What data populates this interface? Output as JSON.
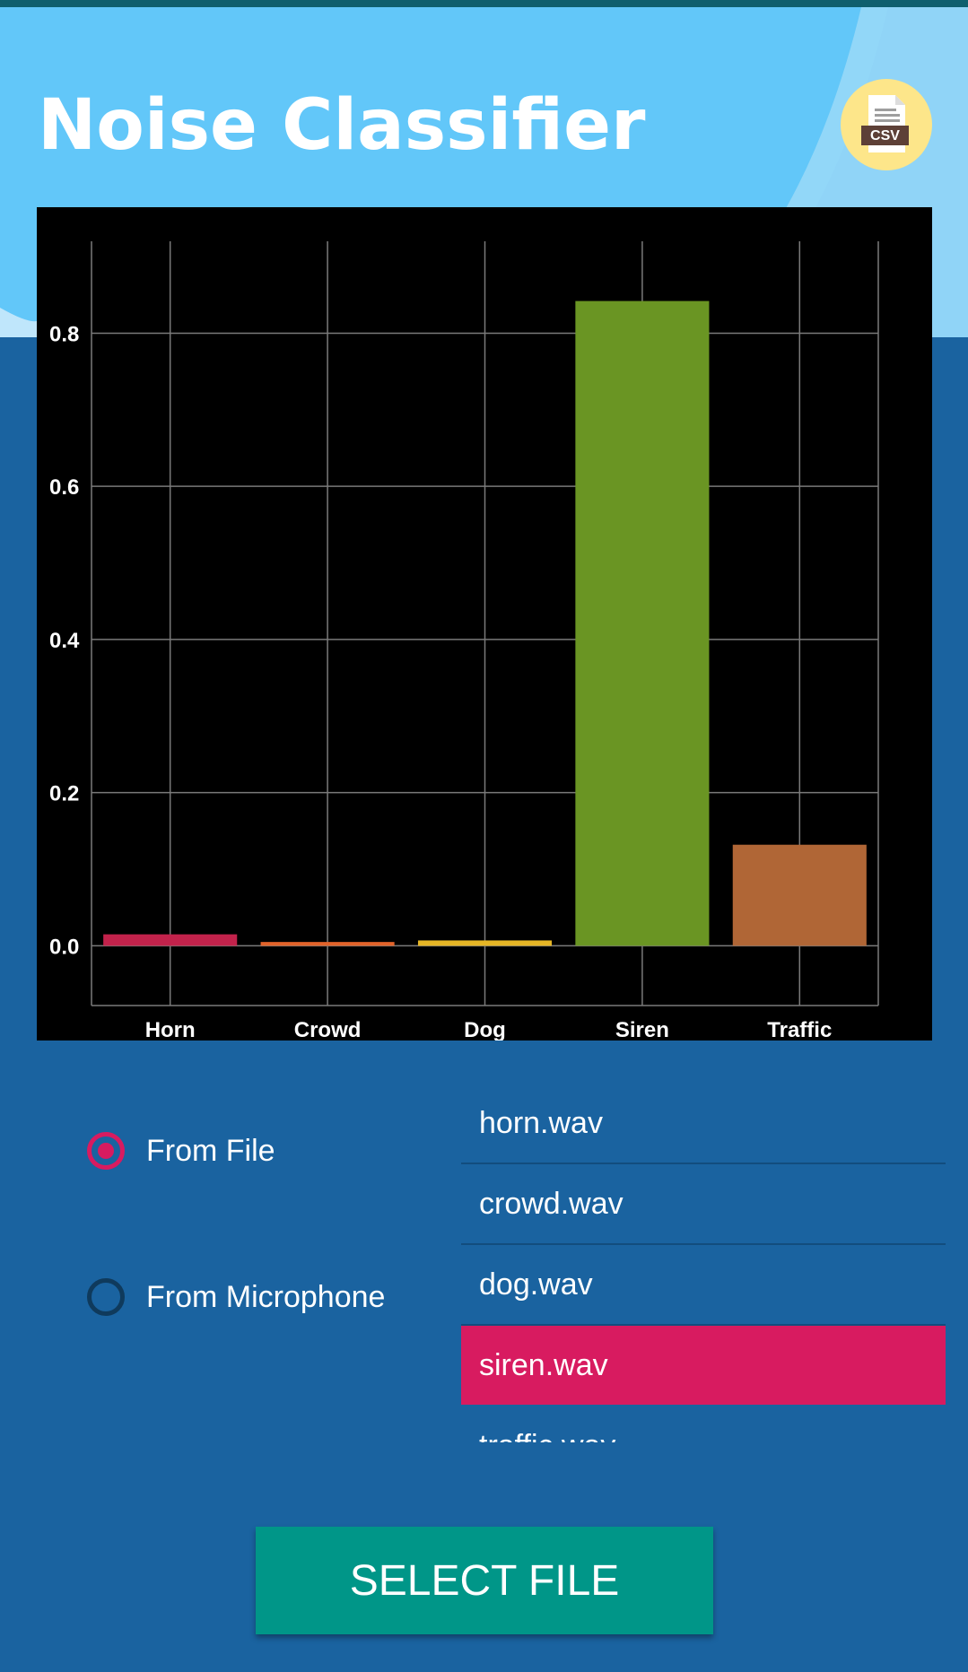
{
  "app": {
    "title": "Noise Classifier"
  },
  "csv_button": {
    "icon": "csv-file-icon",
    "label": "CSV",
    "bg": "#fde68a"
  },
  "chart_data": {
    "type": "bar",
    "categories": [
      "Horn",
      "Crowd",
      "Dog",
      "Siren",
      "Traffic"
    ],
    "values": [
      0.015,
      0.005,
      0.007,
      0.842,
      0.132
    ],
    "colors": [
      "#c2224b",
      "#e2632a",
      "#e6b625",
      "#6a9523",
      "#b06636"
    ],
    "yticks": [
      "0.0",
      "0.2",
      "0.4",
      "0.6",
      "0.8"
    ],
    "ylim": [
      -0.078,
      0.92
    ],
    "grid": true,
    "background": "#000000"
  },
  "input_mode": {
    "options": [
      {
        "label": "From File",
        "checked": true
      },
      {
        "label": "From Microphone",
        "checked": false
      }
    ]
  },
  "files": {
    "items": [
      "horn.wav",
      "crowd.wav",
      "dog.wav",
      "siren.wav",
      "traffic.wav"
    ],
    "selected": "siren.wav"
  },
  "actions": {
    "select_file_label": "SELECT FILE"
  },
  "colors": {
    "accent": "#d81b60",
    "primary": "#1a63a0",
    "button": "#009688",
    "sky": "#62c7f9"
  }
}
